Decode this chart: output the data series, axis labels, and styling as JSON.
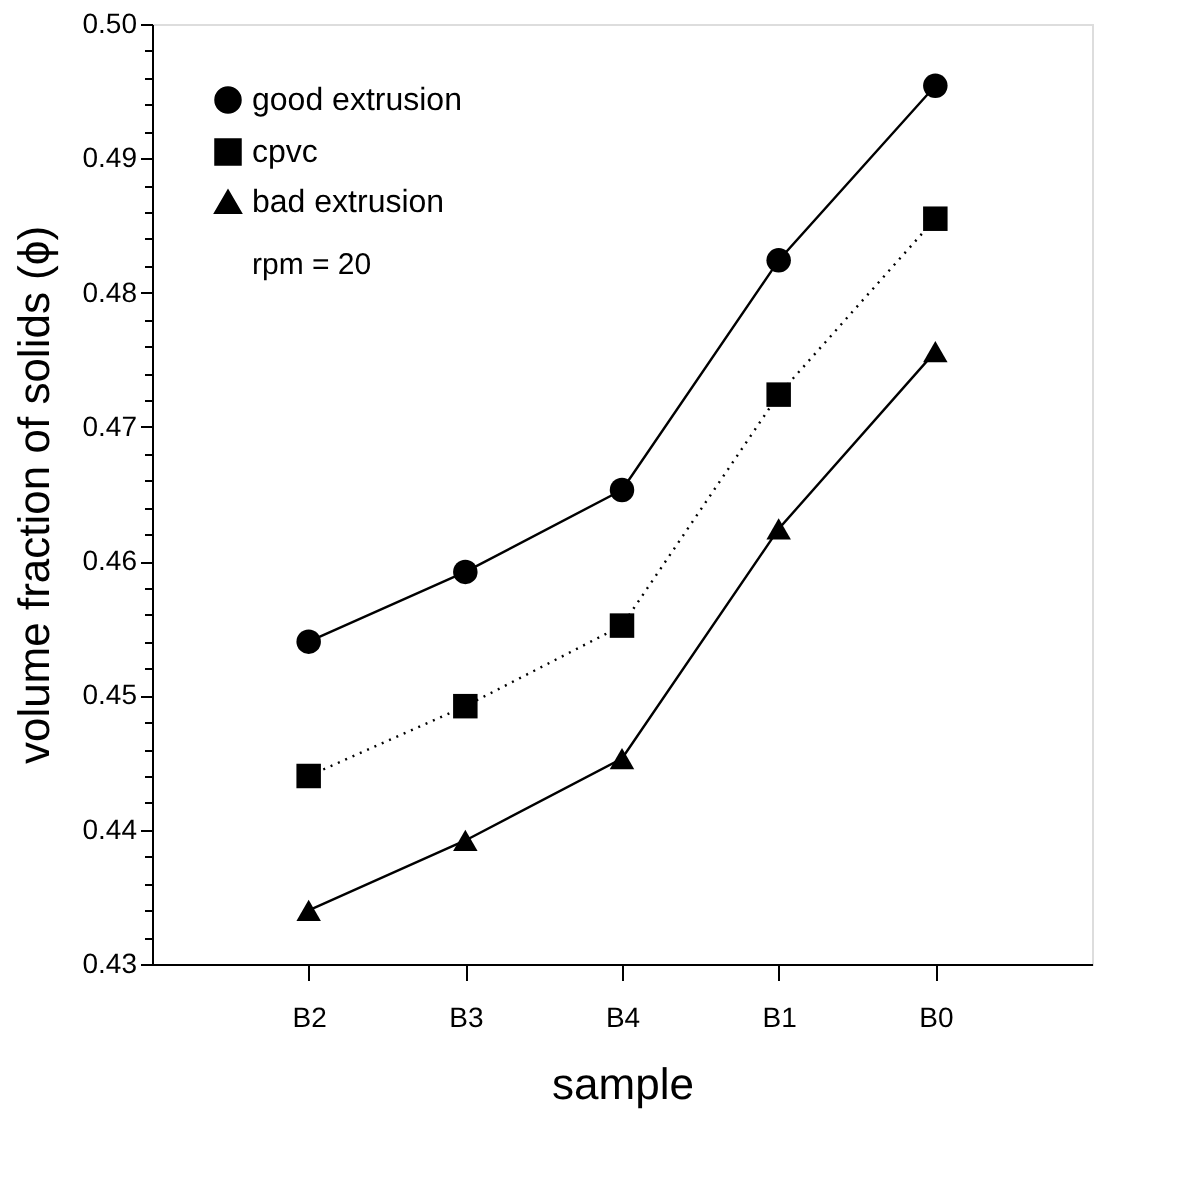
{
  "chart_data": {
    "type": "line",
    "xlabel": "sample",
    "ylabel": "volume fraction of solids (ϕ)",
    "categories": [
      "B2",
      "B3",
      "B4",
      "B1",
      "B0"
    ],
    "series": [
      {
        "name": "good extrusion",
        "color": "#000000",
        "marker": "circle",
        "line_style": "solid",
        "values": [
          0.454,
          0.4592,
          0.4653,
          0.4824,
          0.4954
        ]
      },
      {
        "name": "cpvc",
        "color": "#000000",
        "marker": "square",
        "line_style": "dotted",
        "values": [
          0.444,
          0.4492,
          0.4552,
          0.4724,
          0.4855
        ]
      },
      {
        "name": "bad extrusion",
        "color": "#000000",
        "marker": "triangle",
        "line_style": "solid",
        "values": [
          0.434,
          0.4392,
          0.4453,
          0.4624,
          0.4756
        ]
      }
    ],
    "ylim": [
      0.43,
      0.5
    ],
    "yticks": [
      {
        "value": 0.43,
        "label": "0.43"
      },
      {
        "value": 0.432,
        "label": null
      },
      {
        "value": 0.434,
        "label": null
      },
      {
        "value": 0.436,
        "label": null
      },
      {
        "value": 0.438,
        "label": null
      },
      {
        "value": 0.44,
        "label": "0.44"
      },
      {
        "value": 0.442,
        "label": null
      },
      {
        "value": 0.444,
        "label": null
      },
      {
        "value": 0.446,
        "label": null
      },
      {
        "value": 0.448,
        "label": null
      },
      {
        "value": 0.45,
        "label": "0.45"
      },
      {
        "value": 0.452,
        "label": null
      },
      {
        "value": 0.454,
        "label": null
      },
      {
        "value": 0.456,
        "label": null
      },
      {
        "value": 0.458,
        "label": null
      },
      {
        "value": 0.46,
        "label": "0.46"
      },
      {
        "value": 0.462,
        "label": null
      },
      {
        "value": 0.464,
        "label": null
      },
      {
        "value": 0.466,
        "label": null
      },
      {
        "value": 0.468,
        "label": null
      },
      {
        "value": 0.47,
        "label": "0.47"
      },
      {
        "value": 0.472,
        "label": null
      },
      {
        "value": 0.474,
        "label": null
      },
      {
        "value": 0.476,
        "label": null
      },
      {
        "value": 0.478,
        "label": null
      },
      {
        "value": 0.48,
        "label": "0.48"
      },
      {
        "value": 0.482,
        "label": null
      },
      {
        "value": 0.484,
        "label": null
      },
      {
        "value": 0.486,
        "label": null
      },
      {
        "value": 0.488,
        "label": null
      },
      {
        "value": 0.49,
        "label": "0.49"
      },
      {
        "value": 0.492,
        "label": null
      },
      {
        "value": 0.494,
        "label": null
      },
      {
        "value": 0.496,
        "label": null
      },
      {
        "value": 0.498,
        "label": null
      },
      {
        "value": 0.5,
        "label": "0.50"
      }
    ],
    "annotations": [
      "rpm = 20"
    ],
    "legend": "top left",
    "grid": false
  }
}
